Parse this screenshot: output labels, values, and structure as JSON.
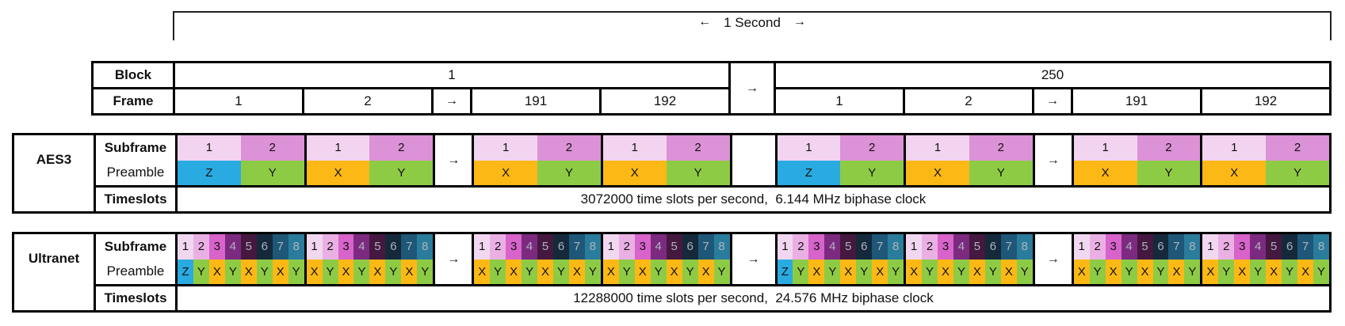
{
  "header": {
    "left_arrow": "←",
    "seconds_label": "1 Second",
    "right_arrow": "→"
  },
  "glyphs": {
    "arrow": "→"
  },
  "colors": {
    "border": "#000000",
    "preamble": {
      "Z": "#29abe2",
      "Y": "#8ecb45",
      "X": "#fcb814"
    },
    "aes3_subframe": [
      "#f2d4f0",
      "#dc92d6"
    ],
    "aes3_subframe_text": [
      "#111111",
      "#111111"
    ],
    "ultranet_subframe": [
      "#f2d7f0",
      "#eab0e4",
      "#d763cb",
      "#7c2a80",
      "#44183f",
      "#14293c",
      "#1e5777",
      "#2a7c9c"
    ],
    "ultranet_subframe_text": [
      "#111111",
      "#111111",
      "#111111",
      "#aeb3bc",
      "#aeb3bc",
      "#aeb3bc",
      "#aeb3bc",
      "#aeb3bc"
    ]
  },
  "block_table": {
    "block_label": "Block",
    "frame_label": "Frame",
    "separator_glyph": "→",
    "blocks": [
      {
        "number": "1",
        "frames": [
          "1",
          "2",
          "→",
          "191",
          "192"
        ]
      },
      {
        "number": "250",
        "frames": [
          "1",
          "2",
          "→",
          "191",
          "192"
        ]
      }
    ]
  },
  "aes3": {
    "title": "AES3",
    "subframe_label": "Subframe",
    "preamble_label": "Preamble",
    "timeslots_label": "Timeslots",
    "timeslots_text": "3072000 time slots per second,  6.144 MHz biphase clock",
    "subframe_numbers": [
      "1",
      "2"
    ],
    "sequence": [
      {
        "type": "frame",
        "preambles": [
          "Z",
          "Y"
        ]
      },
      {
        "type": "frame",
        "preambles": [
          "X",
          "Y"
        ]
      },
      {
        "type": "arrow"
      },
      {
        "type": "frame",
        "preambles": [
          "X",
          "Y"
        ]
      },
      {
        "type": "frame",
        "preambles": [
          "X",
          "Y"
        ]
      },
      {
        "type": "gap"
      },
      {
        "type": "frame",
        "preambles": [
          "Z",
          "Y"
        ]
      },
      {
        "type": "frame",
        "preambles": [
          "X",
          "Y"
        ]
      },
      {
        "type": "arrow"
      },
      {
        "type": "frame",
        "preambles": [
          "X",
          "Y"
        ]
      },
      {
        "type": "frame",
        "preambles": [
          "X",
          "Y"
        ]
      }
    ]
  },
  "ultranet": {
    "title": "Ultranet",
    "subframe_label": "Subframe",
    "preamble_label": "Preamble",
    "timeslots_label": "Timeslots",
    "timeslots_text": "12288000 time slots per second,  24.576 MHz biphase clock",
    "subframe_numbers": [
      "1",
      "2",
      "3",
      "4",
      "5",
      "6",
      "7",
      "8"
    ],
    "sequence": [
      {
        "type": "frame",
        "preambles": [
          "Z",
          "Y",
          "X",
          "Y",
          "X",
          "Y",
          "X",
          "Y"
        ]
      },
      {
        "type": "frame",
        "preambles": [
          "X",
          "Y",
          "X",
          "Y",
          "X",
          "Y",
          "X",
          "Y"
        ]
      },
      {
        "type": "arrow"
      },
      {
        "type": "frame",
        "preambles": [
          "X",
          "Y",
          "X",
          "Y",
          "X",
          "Y",
          "X",
          "Y"
        ]
      },
      {
        "type": "frame",
        "preambles": [
          "X",
          "Y",
          "X",
          "Y",
          "X",
          "Y",
          "X",
          "Y"
        ]
      },
      {
        "type": "arrow"
      },
      {
        "type": "frame",
        "preambles": [
          "Z",
          "Y",
          "X",
          "Y",
          "X",
          "Y",
          "X",
          "Y"
        ]
      },
      {
        "type": "frame",
        "preambles": [
          "X",
          "Y",
          "X",
          "Y",
          "X",
          "Y",
          "X",
          "Y"
        ]
      },
      {
        "type": "arrow"
      },
      {
        "type": "frame",
        "preambles": [
          "X",
          "Y",
          "X",
          "Y",
          "X",
          "Y",
          "X",
          "Y"
        ]
      },
      {
        "type": "frame",
        "preambles": [
          "X",
          "Y",
          "X",
          "Y",
          "X",
          "Y",
          "X",
          "Y"
        ]
      }
    ]
  }
}
